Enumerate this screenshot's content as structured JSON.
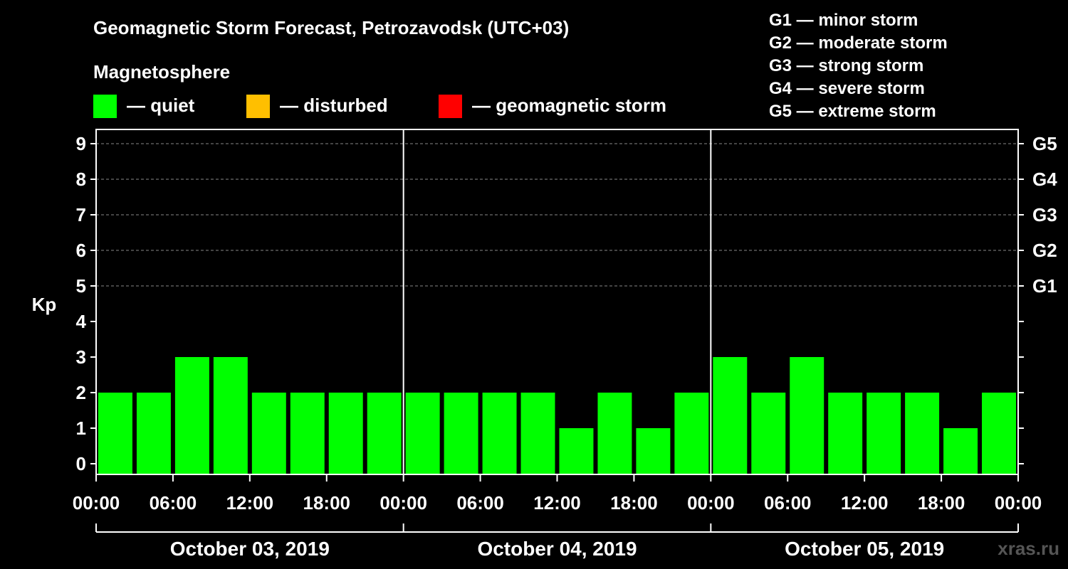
{
  "title": "Geomagnetic Storm Forecast, Petrozavodsk (UTC+03)",
  "legend": {
    "heading": "Magnetosphere",
    "items": [
      {
        "label": "— quiet",
        "color": "#00ff00"
      },
      {
        "label": "— disturbed",
        "color": "#ffbf00"
      },
      {
        "label": "— geomagnetic storm",
        "color": "#ff0000"
      }
    ]
  },
  "storm_scale": [
    "G1 — minor storm",
    "G2 — moderate storm",
    "G3 — strong storm",
    "G4 — severe storm",
    "G5 — extreme storm"
  ],
  "watermark": "xras.ru",
  "chart_data": {
    "type": "bar",
    "title": "Geomagnetic Storm Forecast, Petrozavodsk (UTC+03)",
    "ylabel": "Kp",
    "ylim": [
      0,
      9
    ],
    "yticks": [
      "0",
      "1",
      "2",
      "3",
      "4",
      "5",
      "6",
      "7",
      "8",
      "9"
    ],
    "right_ticks": [
      {
        "kp": 5,
        "label": "G1"
      },
      {
        "kp": 6,
        "label": "G2"
      },
      {
        "kp": 7,
        "label": "G3"
      },
      {
        "kp": 8,
        "label": "G4"
      },
      {
        "kp": 9,
        "label": "G5"
      }
    ],
    "xticks": [
      "00:00",
      "06:00",
      "12:00",
      "18:00",
      "00:00",
      "06:00",
      "12:00",
      "18:00",
      "00:00",
      "06:00",
      "12:00",
      "18:00",
      "00:00"
    ],
    "days": [
      "October 03, 2019",
      "October 04, 2019",
      "October 05, 2019"
    ],
    "bar_color": "#00ff00",
    "values": [
      2,
      2,
      3,
      3,
      2,
      2,
      2,
      2,
      2,
      2,
      2,
      2,
      1,
      2,
      1,
      2,
      3,
      2,
      3,
      2,
      2,
      2,
      1,
      2
    ],
    "gridlines": [
      5,
      6,
      7,
      8,
      9
    ]
  }
}
